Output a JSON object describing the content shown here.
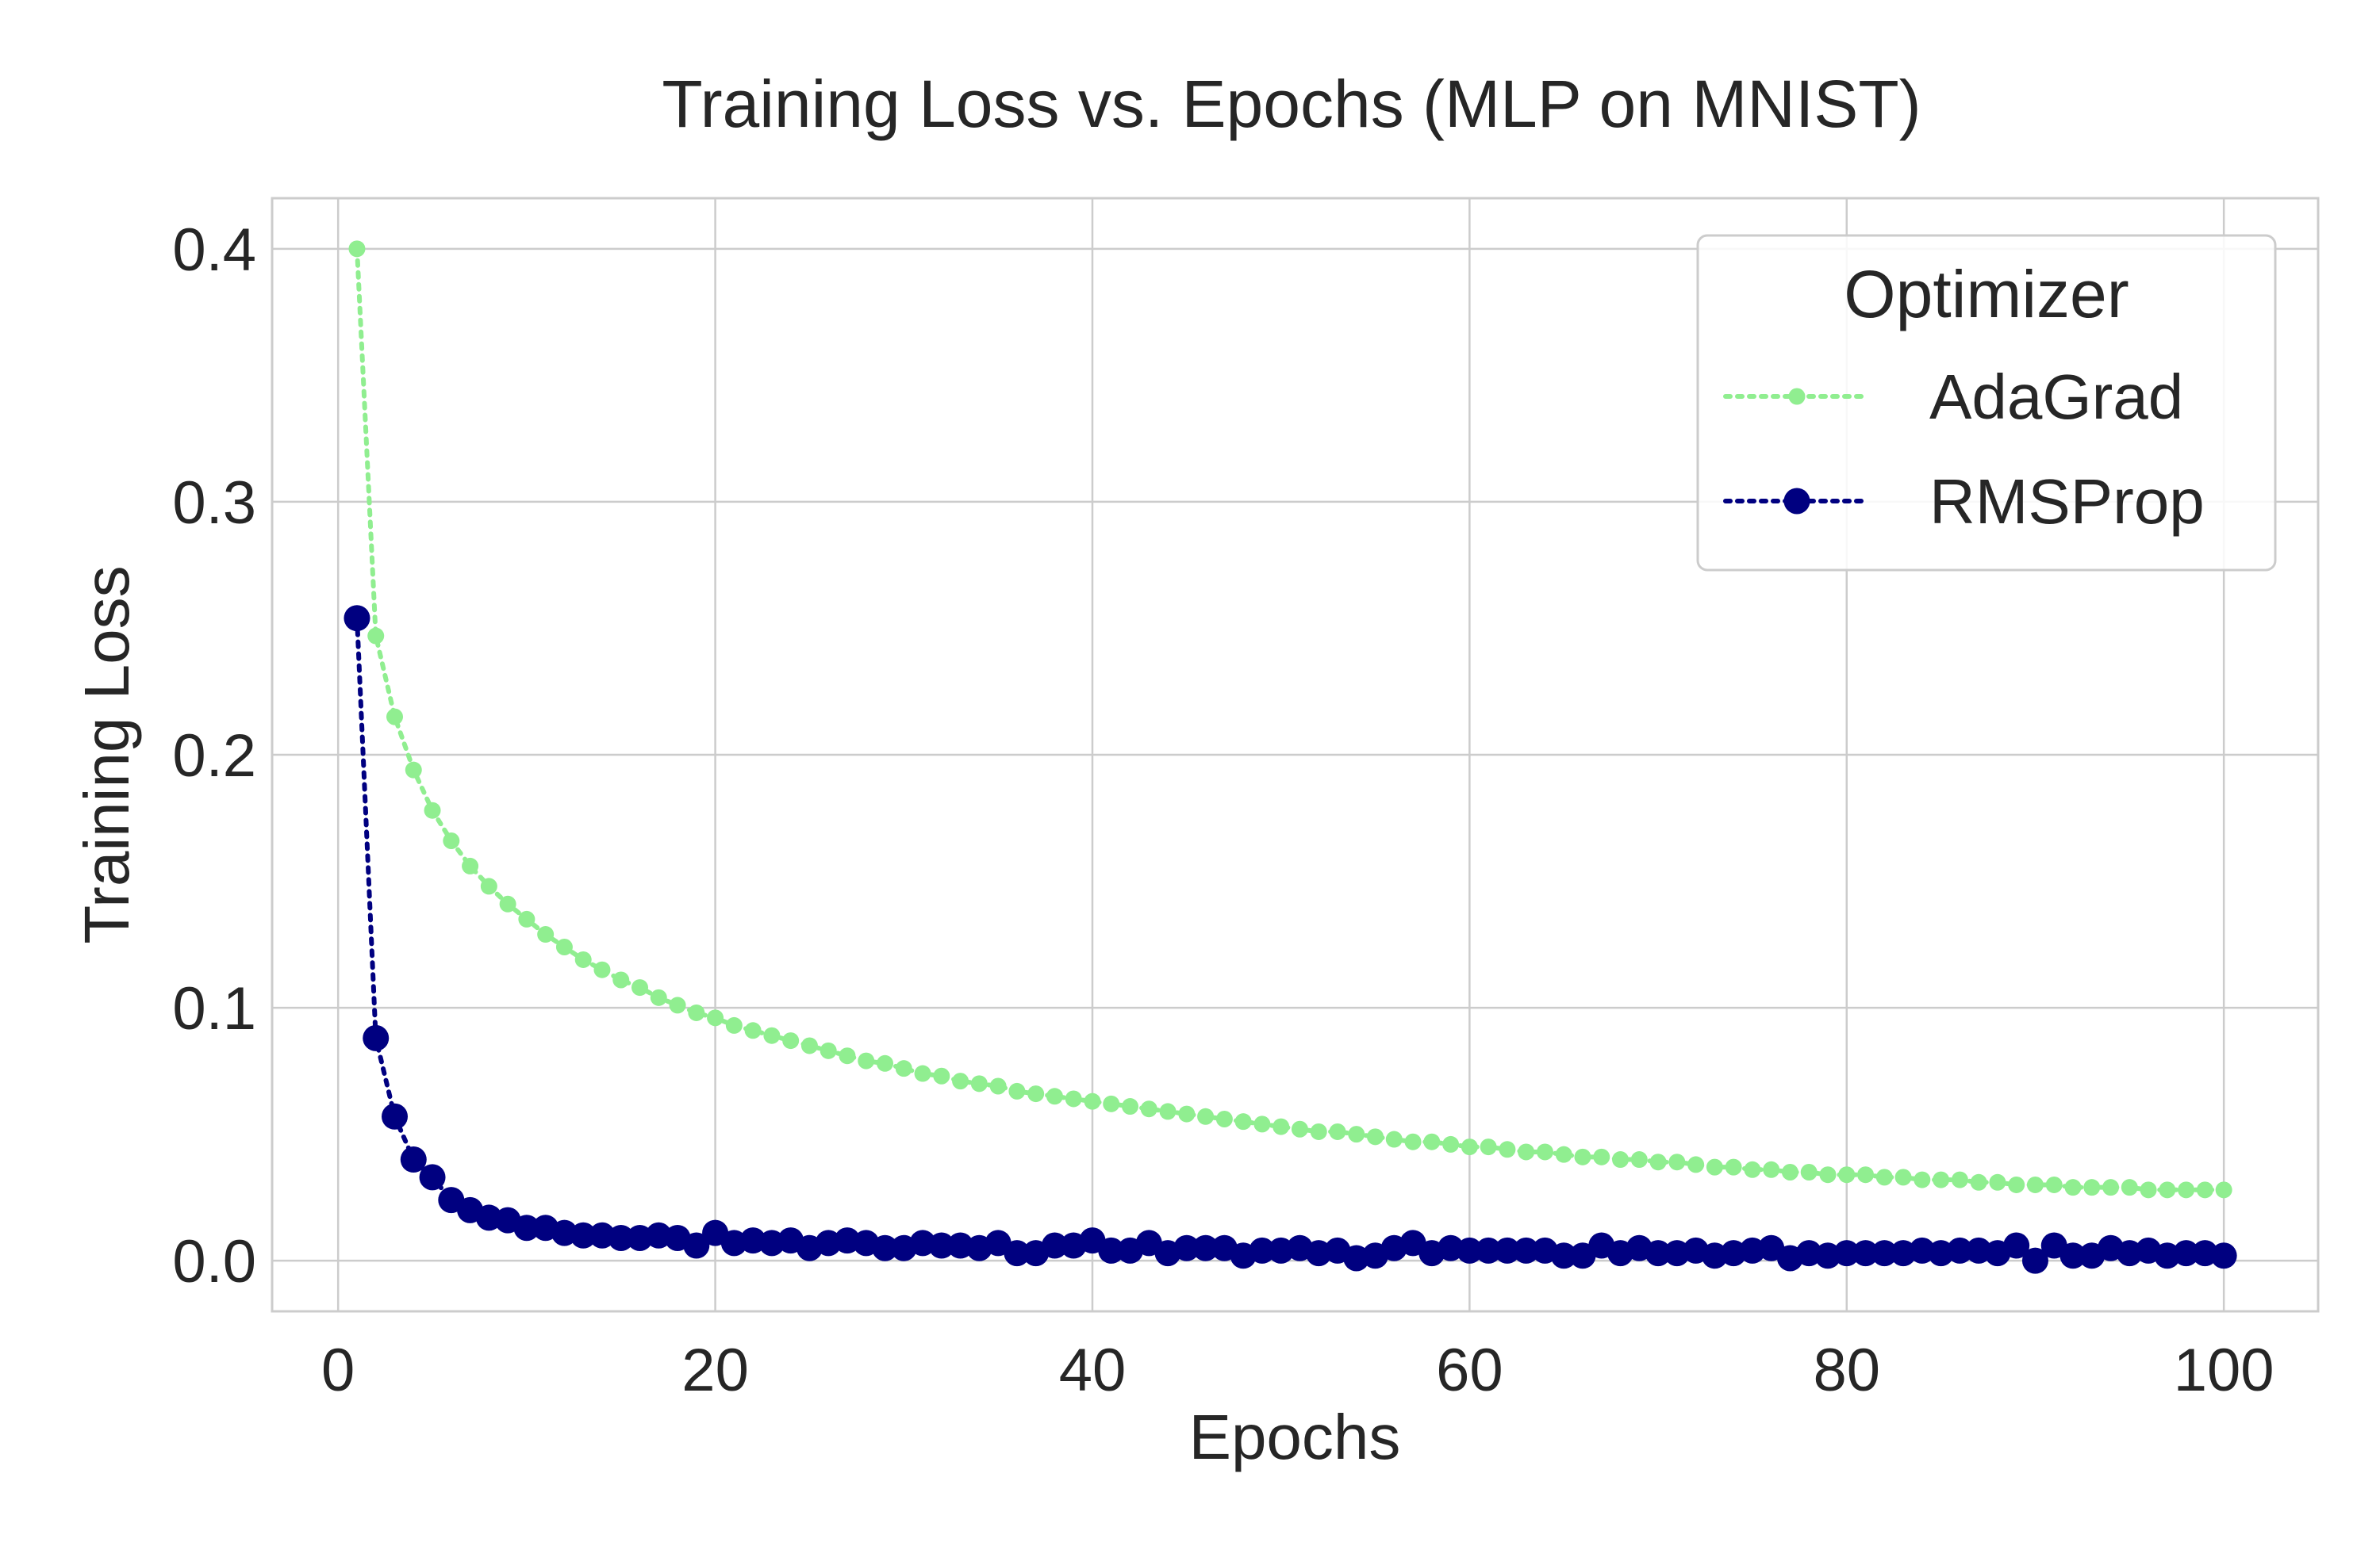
{
  "chart_data": {
    "type": "line",
    "title": "Training Loss vs. Epochs (MLP on MNIST)",
    "xlabel": "Epochs",
    "ylabel": "Training Loss",
    "xlim": [
      -3.5,
      105
    ],
    "ylim": [
      -0.02,
      0.42
    ],
    "xticks": [
      0,
      20,
      40,
      60,
      80,
      100
    ],
    "yticks": [
      0.0,
      0.1,
      0.2,
      0.3,
      0.4
    ],
    "xtick_labels": [
      "0",
      "20",
      "40",
      "60",
      "80",
      "100"
    ],
    "ytick_labels": [
      "0.0",
      "0.1",
      "0.2",
      "0.3",
      "0.4"
    ],
    "grid": true,
    "legend": {
      "title": "Optimizer",
      "placement": "top-right"
    },
    "series": [
      {
        "name": "AdaGrad",
        "color": "#90ee90",
        "line_style": "dotted",
        "marker": "small-circle",
        "x": [
          1,
          2,
          3,
          4,
          5,
          6,
          7,
          8,
          9,
          10,
          11,
          12,
          13,
          14,
          15,
          16,
          17,
          18,
          19,
          20,
          21,
          22,
          23,
          24,
          25,
          26,
          27,
          28,
          29,
          30,
          31,
          32,
          33,
          34,
          35,
          36,
          37,
          38,
          39,
          40,
          41,
          42,
          43,
          44,
          45,
          46,
          47,
          48,
          49,
          50,
          51,
          52,
          53,
          54,
          55,
          56,
          57,
          58,
          59,
          60,
          61,
          62,
          63,
          64,
          65,
          66,
          67,
          68,
          69,
          70,
          71,
          72,
          73,
          74,
          75,
          76,
          77,
          78,
          79,
          80,
          81,
          82,
          83,
          84,
          85,
          86,
          87,
          88,
          89,
          90,
          91,
          92,
          93,
          94,
          95,
          96,
          97,
          98,
          99,
          100
        ],
        "y": [
          0.4,
          0.247,
          0.215,
          0.194,
          0.178,
          0.166,
          0.156,
          0.148,
          0.141,
          0.135,
          0.129,
          0.124,
          0.119,
          0.115,
          0.111,
          0.108,
          0.104,
          0.101,
          0.098,
          0.096,
          0.093,
          0.091,
          0.089,
          0.087,
          0.085,
          0.083,
          0.081,
          0.079,
          0.078,
          0.076,
          0.074,
          0.073,
          0.071,
          0.07,
          0.069,
          0.067,
          0.066,
          0.065,
          0.064,
          0.063,
          0.062,
          0.061,
          0.06,
          0.059,
          0.058,
          0.057,
          0.056,
          0.055,
          0.054,
          0.053,
          0.052,
          0.051,
          0.051,
          0.05,
          0.049,
          0.048,
          0.047,
          0.047,
          0.046,
          0.045,
          0.045,
          0.044,
          0.043,
          0.043,
          0.042,
          0.041,
          0.041,
          0.04,
          0.04,
          0.039,
          0.039,
          0.038,
          0.037,
          0.037,
          0.036,
          0.036,
          0.035,
          0.035,
          0.034,
          0.034,
          0.034,
          0.033,
          0.033,
          0.032,
          0.032,
          0.032,
          0.031,
          0.031,
          0.03,
          0.03,
          0.03,
          0.029,
          0.029,
          0.029,
          0.029,
          0.028,
          0.028,
          0.028,
          0.028,
          0.028
        ]
      },
      {
        "name": "RMSProp",
        "color": "#000080",
        "line_style": "dotted",
        "marker": "circle",
        "x": [
          1,
          2,
          3,
          4,
          5,
          6,
          7,
          8,
          9,
          10,
          11,
          12,
          13,
          14,
          15,
          16,
          17,
          18,
          19,
          20,
          21,
          22,
          23,
          24,
          25,
          26,
          27,
          28,
          29,
          30,
          31,
          32,
          33,
          34,
          35,
          36,
          37,
          38,
          39,
          40,
          41,
          42,
          43,
          44,
          45,
          46,
          47,
          48,
          49,
          50,
          51,
          52,
          53,
          54,
          55,
          56,
          57,
          58,
          59,
          60,
          61,
          62,
          63,
          64,
          65,
          66,
          67,
          68,
          69,
          70,
          71,
          72,
          73,
          74,
          75,
          76,
          77,
          78,
          79,
          80,
          81,
          82,
          83,
          84,
          85,
          86,
          87,
          88,
          89,
          90,
          91,
          92,
          93,
          94,
          95,
          96,
          97,
          98,
          99,
          100
        ],
        "y": [
          0.254,
          0.088,
          0.057,
          0.04,
          0.033,
          0.024,
          0.02,
          0.017,
          0.016,
          0.013,
          0.013,
          0.011,
          0.01,
          0.01,
          0.009,
          0.009,
          0.01,
          0.009,
          0.006,
          0.011,
          0.007,
          0.008,
          0.007,
          0.008,
          0.005,
          0.007,
          0.008,
          0.007,
          0.005,
          0.005,
          0.007,
          0.006,
          0.006,
          0.005,
          0.007,
          0.003,
          0.003,
          0.006,
          0.006,
          0.008,
          0.004,
          0.004,
          0.007,
          0.003,
          0.005,
          0.005,
          0.005,
          0.002,
          0.004,
          0.004,
          0.005,
          0.003,
          0.004,
          0.001,
          0.002,
          0.005,
          0.007,
          0.003,
          0.005,
          0.004,
          0.004,
          0.004,
          0.004,
          0.004,
          0.002,
          0.002,
          0.006,
          0.003,
          0.005,
          0.003,
          0.003,
          0.004,
          0.002,
          0.003,
          0.004,
          0.005,
          0.001,
          0.003,
          0.002,
          0.003,
          0.003,
          0.003,
          0.003,
          0.004,
          0.003,
          0.004,
          0.004,
          0.003,
          0.006,
          0.0,
          0.006,
          0.002,
          0.002,
          0.005,
          0.003,
          0.004,
          0.002,
          0.003,
          0.003,
          0.002
        ]
      }
    ]
  }
}
